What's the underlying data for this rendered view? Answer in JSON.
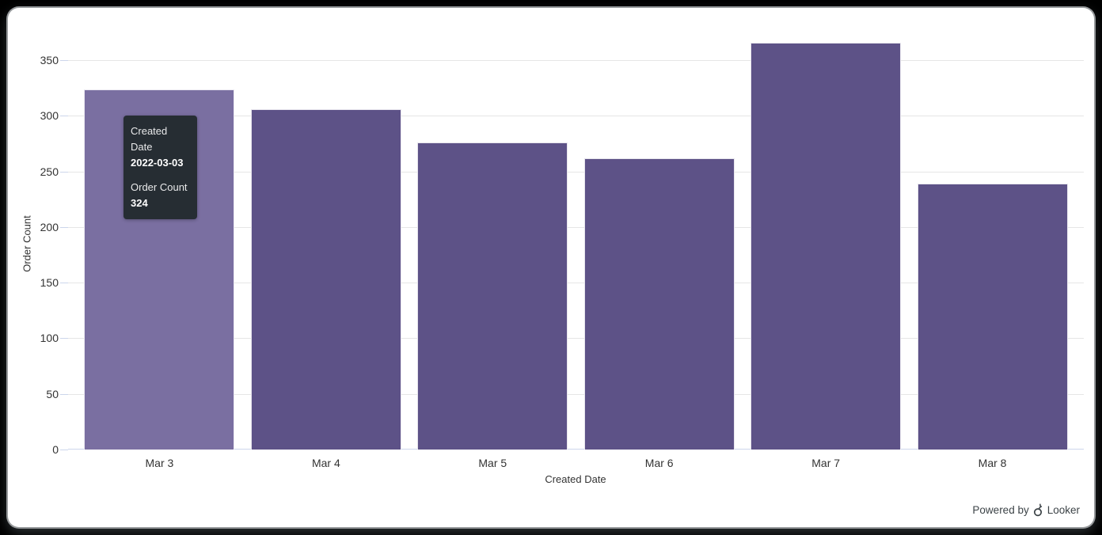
{
  "chart_data": {
    "type": "bar",
    "title": "",
    "categories": [
      "Mar 3",
      "Mar 4",
      "Mar 5",
      "Mar 6",
      "Mar 7",
      "Mar 8"
    ],
    "values": [
      324,
      306,
      276,
      262,
      366,
      239
    ],
    "xlabel": "Created Date",
    "ylabel": "Order Count",
    "ylim": [
      0,
      370
    ],
    "yticks": [
      0,
      50,
      100,
      150,
      200,
      250,
      300,
      350
    ],
    "grid": true,
    "legend": false,
    "bar_color": "#5d5287",
    "bar_hover_color": "#7a6fa1",
    "hovered_index": 0,
    "gridline_color": "#e6e6e6",
    "axis_line_color": "#ccd6eb",
    "label_color": "#333333"
  },
  "tooltip": {
    "field1_label": "Created Date",
    "field1_value": "2022-03-03",
    "field2_label": "Order Count",
    "field2_value": "324",
    "bg_color": "#262d33"
  },
  "footer": {
    "powered_by": "Powered by",
    "brand": "Looker"
  }
}
